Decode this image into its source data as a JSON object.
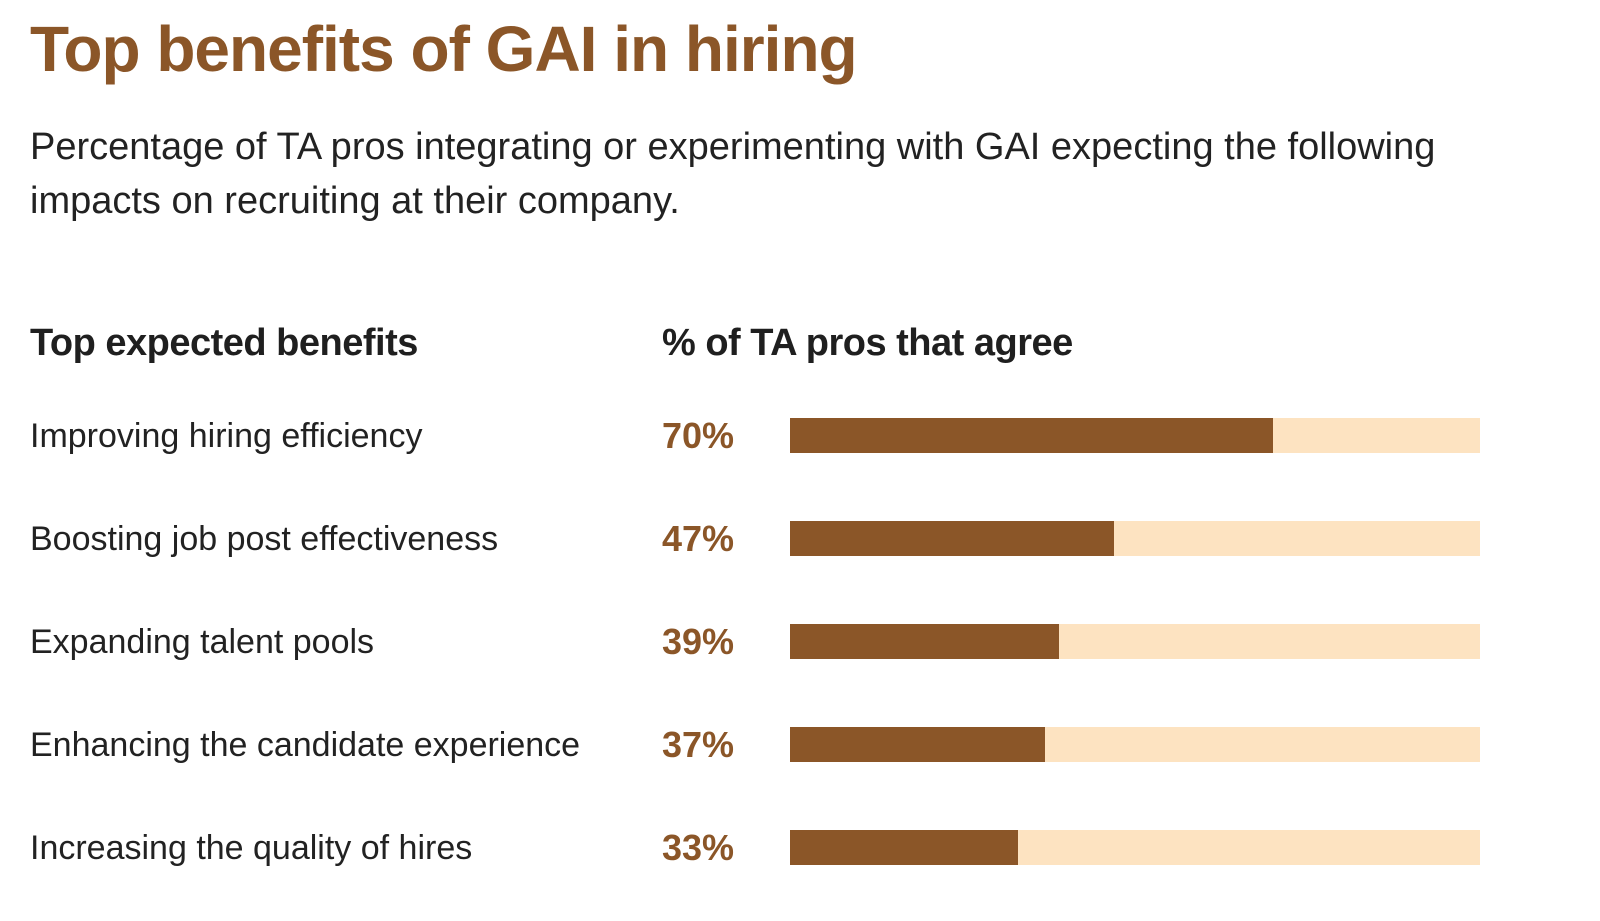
{
  "colors": {
    "accent": "#8b5628",
    "track": "#fde3c1",
    "text": "#222222"
  },
  "chart_data": {
    "type": "bar",
    "orientation": "horizontal",
    "title": "Top benefits of GAI in hiring",
    "subtitle": "Percentage of TA pros integrating or experimenting with GAI expecting the following impacts on recruiting at their company.",
    "category_header": "Top expected benefits",
    "value_header": "% of TA pros that agree",
    "categories": [
      "Improving hiring efficiency",
      "Boosting job post effectiveness",
      "Expanding talent pools",
      "Enhancing the candidate experience",
      "Increasing the quality of hires"
    ],
    "values": [
      70,
      47,
      39,
      37,
      33
    ],
    "value_labels": [
      "70%",
      "47%",
      "39%",
      "37%",
      "33%"
    ],
    "xlim": [
      0,
      100
    ],
    "unit": "%",
    "grid": false,
    "legend": "none"
  }
}
